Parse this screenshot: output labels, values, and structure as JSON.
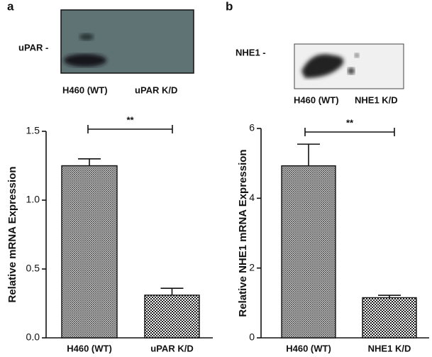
{
  "chart_data": [
    {
      "type": "bar",
      "panel_label": "a",
      "blot": {
        "label": "uPAR -",
        "lanes": [
          "H460 (WT)",
          "uPAR K/D"
        ]
      },
      "y_label": "Relative mRNA Expression",
      "categories": [
        "H460 (WT)",
        "uPAR K/D"
      ],
      "values": [
        1.25,
        0.31
      ],
      "errors": [
        0.05,
        0.05
      ],
      "significance": "**",
      "ylim": [
        0,
        1.5
      ],
      "yticks": [
        {
          "value": 0,
          "label": "0.0"
        },
        0.5,
        {
          "value": 1,
          "label": "1.0"
        },
        1.5
      ]
    },
    {
      "type": "bar",
      "panel_label": "b",
      "blot": {
        "label": "NHE1 -",
        "lanes": [
          "H460 (WT)",
          "NHE1 K/D"
        ]
      },
      "y_label": "Relative NHE1 mRNA Expression",
      "categories": [
        "H460 (WT)",
        "NHE1 K/D"
      ],
      "values": [
        4.93,
        1.15
      ],
      "errors": [
        0.62,
        0.07
      ],
      "significance": "**",
      "ylim": [
        0,
        6
      ],
      "yticks": [
        0,
        2,
        4,
        6
      ]
    }
  ]
}
